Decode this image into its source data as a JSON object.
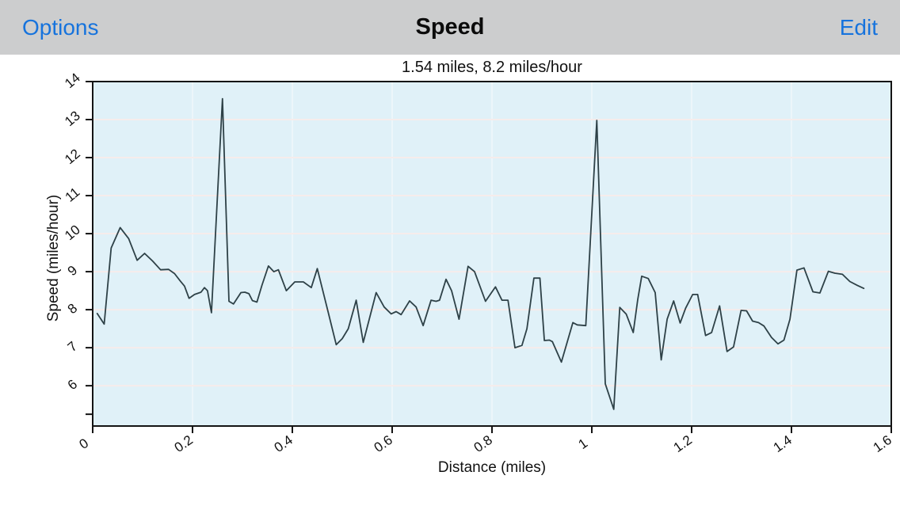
{
  "navbar": {
    "left_button": "Options",
    "title": "Speed",
    "right_button": "Edit",
    "accent_color": "#1673dd",
    "bar_color": "#cccdce"
  },
  "chart_data": {
    "type": "line",
    "title": "1.54 miles, 8.2 miles/hour",
    "xlabel": "Distance (miles)",
    "ylabel": "Speed (miles/hour)",
    "xlim": [
      0,
      1.6
    ],
    "ylim": [
      4.94,
      14
    ],
    "grid": true,
    "legend": "none",
    "x_ticks": {
      "values": [
        0,
        0.2,
        0.4,
        0.6,
        0.8,
        1.0,
        1.2,
        1.4,
        1.6
      ],
      "labels": [
        "0",
        "0.2",
        "0.4",
        "0.6",
        "0.8",
        "1",
        "1.2",
        "1.4",
        "1.6"
      ]
    },
    "y_ticks": {
      "values": [
        6,
        7,
        8,
        9,
        10,
        11,
        12,
        13,
        14
      ],
      "labels": [
        "6",
        "7",
        "8",
        "9",
        "10",
        "11",
        "12",
        "13",
        "14"
      ]
    },
    "y_minor_ticks": [
      5.25
    ],
    "colors": {
      "plot_bg": "#e0f1f8",
      "h_grid": "#f6eceb",
      "v_grid": "#ecf6fa",
      "line": "#2e4147",
      "frame": "#141414"
    },
    "series": [
      {
        "name": "speed",
        "points": [
          [
            0.009,
            7.9
          ],
          [
            0.023,
            7.62
          ],
          [
            0.037,
            9.62
          ],
          [
            0.055,
            10.16
          ],
          [
            0.072,
            9.87
          ],
          [
            0.089,
            9.3
          ],
          [
            0.104,
            9.48
          ],
          [
            0.12,
            9.28
          ],
          [
            0.136,
            9.05
          ],
          [
            0.152,
            9.06
          ],
          [
            0.164,
            8.95
          ],
          [
            0.175,
            8.76
          ],
          [
            0.184,
            8.62
          ],
          [
            0.193,
            8.3
          ],
          [
            0.204,
            8.4
          ],
          [
            0.217,
            8.46
          ],
          [
            0.224,
            8.58
          ],
          [
            0.23,
            8.5
          ],
          [
            0.238,
            7.92
          ],
          [
            0.26,
            13.55
          ],
          [
            0.273,
            8.22
          ],
          [
            0.282,
            8.15
          ],
          [
            0.297,
            8.45
          ],
          [
            0.305,
            8.46
          ],
          [
            0.313,
            8.42
          ],
          [
            0.32,
            8.24
          ],
          [
            0.329,
            8.2
          ],
          [
            0.339,
            8.64
          ],
          [
            0.352,
            9.15
          ],
          [
            0.363,
            9.0
          ],
          [
            0.372,
            9.05
          ],
          [
            0.388,
            8.5
          ],
          [
            0.405,
            8.73
          ],
          [
            0.422,
            8.73
          ],
          [
            0.438,
            8.58
          ],
          [
            0.45,
            9.08
          ],
          [
            0.472,
            7.92
          ],
          [
            0.488,
            7.08
          ],
          [
            0.5,
            7.24
          ],
          [
            0.512,
            7.5
          ],
          [
            0.528,
            8.25
          ],
          [
            0.542,
            7.14
          ],
          [
            0.568,
            8.45
          ],
          [
            0.584,
            8.07
          ],
          [
            0.598,
            7.89
          ],
          [
            0.608,
            7.95
          ],
          [
            0.618,
            7.87
          ],
          [
            0.635,
            8.23
          ],
          [
            0.648,
            8.07
          ],
          [
            0.662,
            7.58
          ],
          [
            0.678,
            8.25
          ],
          [
            0.688,
            8.22
          ],
          [
            0.695,
            8.25
          ],
          [
            0.708,
            8.8
          ],
          [
            0.719,
            8.5
          ],
          [
            0.734,
            7.75
          ],
          [
            0.752,
            9.14
          ],
          [
            0.765,
            9.0
          ],
          [
            0.787,
            8.22
          ],
          [
            0.807,
            8.6
          ],
          [
            0.82,
            8.25
          ],
          [
            0.832,
            8.25
          ],
          [
            0.846,
            7.0
          ],
          [
            0.86,
            7.06
          ],
          [
            0.87,
            7.5
          ],
          [
            0.884,
            8.83
          ],
          [
            0.896,
            8.83
          ],
          [
            0.905,
            7.19
          ],
          [
            0.915,
            7.2
          ],
          [
            0.921,
            7.16
          ],
          [
            0.939,
            6.62
          ],
          [
            0.962,
            7.66
          ],
          [
            0.971,
            7.6
          ],
          [
            0.988,
            7.58
          ],
          [
            1.01,
            12.98
          ],
          [
            1.027,
            6.05
          ],
          [
            1.044,
            5.38
          ],
          [
            1.056,
            8.06
          ],
          [
            1.069,
            7.88
          ],
          [
            1.083,
            7.4
          ],
          [
            1.092,
            8.27
          ],
          [
            1.1,
            8.88
          ],
          [
            1.113,
            8.82
          ],
          [
            1.127,
            8.45
          ],
          [
            1.139,
            6.68
          ],
          [
            1.151,
            7.75
          ],
          [
            1.164,
            8.23
          ],
          [
            1.177,
            7.65
          ],
          [
            1.188,
            8.04
          ],
          [
            1.202,
            8.4
          ],
          [
            1.212,
            8.4
          ],
          [
            1.228,
            7.32
          ],
          [
            1.24,
            7.4
          ],
          [
            1.256,
            8.1
          ],
          [
            1.271,
            6.9
          ],
          [
            1.284,
            7.02
          ],
          [
            1.299,
            7.98
          ],
          [
            1.31,
            7.97
          ],
          [
            1.322,
            7.7
          ],
          [
            1.334,
            7.66
          ],
          [
            1.345,
            7.57
          ],
          [
            1.36,
            7.27
          ],
          [
            1.373,
            7.1
          ],
          [
            1.385,
            7.2
          ],
          [
            1.397,
            7.75
          ],
          [
            1.411,
            9.04
          ],
          [
            1.425,
            9.1
          ],
          [
            1.443,
            8.47
          ],
          [
            1.457,
            8.44
          ],
          [
            1.474,
            9.01
          ],
          [
            1.487,
            8.96
          ],
          [
            1.502,
            8.93
          ],
          [
            1.517,
            8.74
          ],
          [
            1.532,
            8.64
          ],
          [
            1.545,
            8.56
          ]
        ]
      }
    ]
  }
}
